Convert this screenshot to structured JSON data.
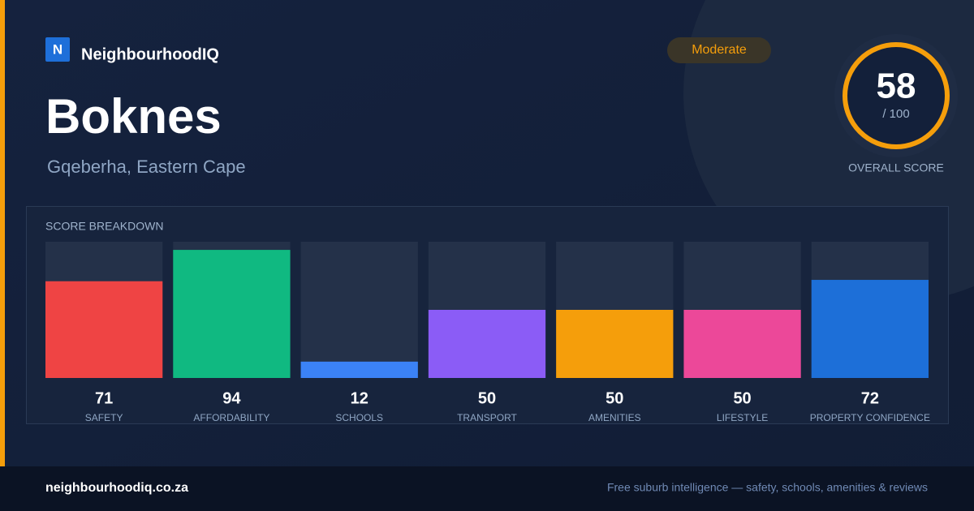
{
  "brand": "NeighbourhoodIQ",
  "logo_letter": "N",
  "title": "Boknes",
  "subtitle": "Gqeberha, Eastern Cape",
  "badge": "Moderate",
  "overall_score": 58,
  "overall_max_label": "/ 100",
  "overall_label": "OVERALL SCORE",
  "chart_data": {
    "type": "bar",
    "title": "SCORE BREAKDOWN",
    "categories": [
      "SAFETY",
      "AFFORDABILITY",
      "SCHOOLS",
      "TRANSPORT",
      "AMENITIES",
      "LIFESTYLE",
      "PROPERTY CONFIDENCE"
    ],
    "values": [
      71,
      94,
      12,
      50,
      50,
      50,
      72
    ],
    "colors": [
      "#ef4444",
      "#10b981",
      "#3b82f6",
      "#8b5cf6",
      "#f59e0b",
      "#ec4899",
      "#1d6fd8"
    ],
    "ylim": [
      0,
      100
    ]
  },
  "footer": {
    "site": "neighbourhoodiq.co.za",
    "tagline": "Free suburb intelligence — safety, schools, amenities & reviews"
  }
}
